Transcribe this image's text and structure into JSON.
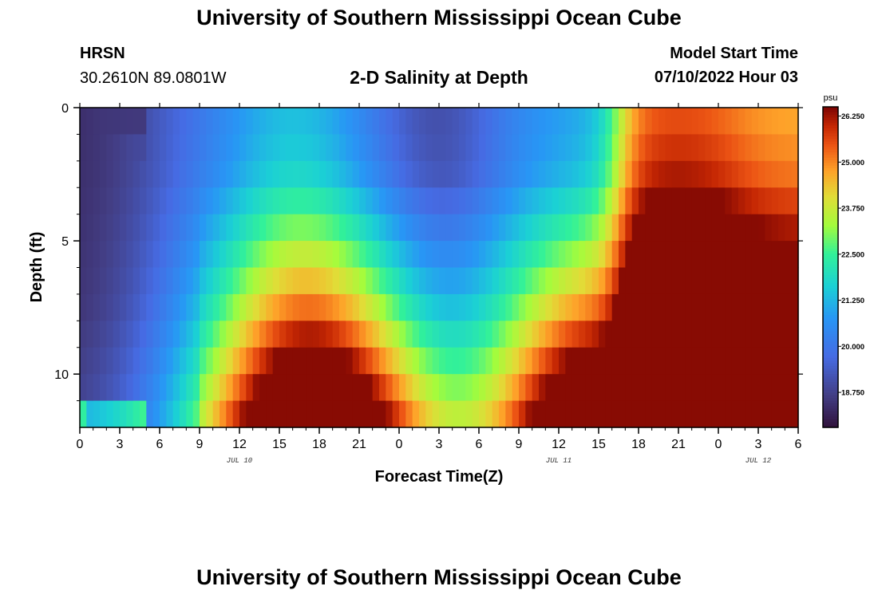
{
  "header": {
    "title": "University of Southern Mississippi Ocean Cube",
    "station": "HRSN",
    "coords": "30.2610N  89.0801W",
    "subtitle": "2-D Salinity at Depth",
    "model_label": "Model Start Time",
    "model_datetime": "07/10/2022 Hour 03"
  },
  "footer": {
    "title": "University of Southern Mississippi Ocean Cube"
  },
  "chart_data": {
    "type": "heatmap",
    "title": "2-D Salinity at Depth",
    "xlabel": "Forecast Time(Z)",
    "ylabel": "Depth (ft)",
    "x_range_hours": [
      0,
      54
    ],
    "y_range_ft": [
      0,
      12
    ],
    "x_tick_labels": [
      "0",
      "3",
      "6",
      "9",
      "12",
      "15",
      "18",
      "21",
      "0",
      "3",
      "6",
      "9",
      "12",
      "15",
      "18",
      "21",
      "0",
      "3",
      "6"
    ],
    "y_tick_labels": [
      "0",
      "5",
      "10"
    ],
    "date_labels": [
      {
        "label": "JUL 10",
        "hour": 12
      },
      {
        "label": "JUL 11",
        "hour": 36
      },
      {
        "label": "JUL 12",
        "hour": 51
      }
    ],
    "colorbar": {
      "unit": "psu",
      "min": 17.8,
      "max": 26.5,
      "tick_labels": [
        "18.750",
        "20.000",
        "21.250",
        "22.500",
        "23.750",
        "25.000",
        "26.250"
      ]
    }
  }
}
